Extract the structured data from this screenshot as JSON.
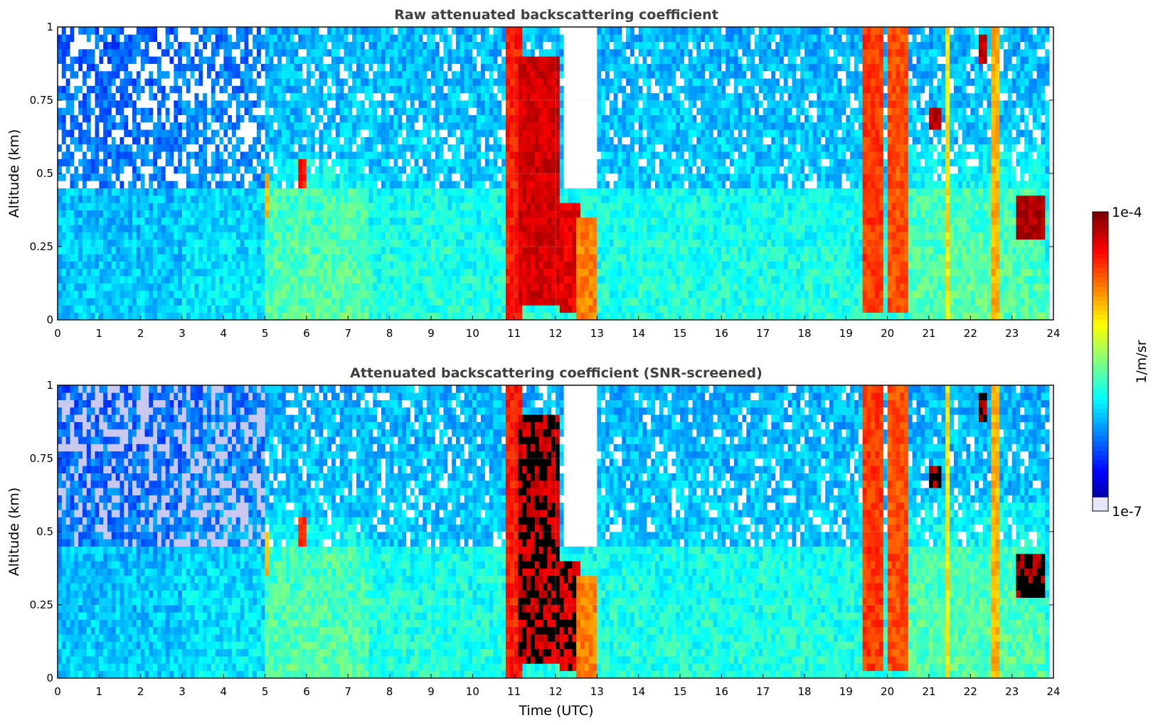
{
  "figure": {
    "colorbar": {
      "label": "1/m/sr",
      "max_label": "1e-4",
      "min_label": "1e-7",
      "scale": "log",
      "min": 1e-07,
      "max": 0.0001,
      "colormap": "jet"
    },
    "grid": "dotted"
  },
  "chart_data": [
    {
      "type": "heatmap",
      "title": "Raw attenuated backscattering coefficient",
      "xlabel": "",
      "ylabel": "Altitude (km)",
      "xlim": [
        0,
        24
      ],
      "ylim": [
        0,
        1
      ],
      "x_ticks": [
        "0",
        "1",
        "2",
        "3",
        "4",
        "5",
        "6",
        "7",
        "8",
        "9",
        "10",
        "11",
        "12",
        "13",
        "14",
        "15",
        "16",
        "17",
        "18",
        "19",
        "20",
        "21",
        "22",
        "23",
        "24"
      ],
      "y_ticks": [
        "0",
        "0.25",
        "0.5",
        "0.75",
        "1"
      ],
      "features": {
        "cloud_bands": [
          {
            "start": 10.85,
            "end": 11.15,
            "bottom": 0,
            "top": 1.0,
            "level": 0.85
          },
          {
            "start": 11.1,
            "end": 12.1,
            "bottom": 0.05,
            "top": 0.9,
            "level": 0.92
          },
          {
            "start": 12.1,
            "end": 12.55,
            "bottom": 0.02,
            "top": 0.4,
            "level": 0.9
          },
          {
            "start": 12.55,
            "end": 13.0,
            "bottom": 0.0,
            "top": 0.35,
            "level": 0.75
          },
          {
            "start": 19.45,
            "end": 19.95,
            "bottom": 0.02,
            "top": 1.0,
            "level": 0.82
          },
          {
            "start": 20.0,
            "end": 20.45,
            "bottom": 0.02,
            "top": 1.0,
            "level": 0.8
          },
          {
            "start": 21.4,
            "end": 21.5,
            "bottom": 0,
            "top": 1.0,
            "level": 0.65
          },
          {
            "start": 22.5,
            "end": 22.7,
            "bottom": 0,
            "top": 1.0,
            "level": 0.7
          },
          {
            "start": 23.1,
            "end": 23.8,
            "bottom": 0.28,
            "top": 0.42,
            "level": 0.95
          },
          {
            "start": 21.05,
            "end": 21.25,
            "bottom": 0.65,
            "top": 0.72,
            "level": 0.95
          },
          {
            "start": 22.25,
            "end": 22.4,
            "bottom": 0.88,
            "top": 0.98,
            "level": 0.93
          },
          {
            "start": 5.0,
            "end": 5.1,
            "bottom": 0.35,
            "top": 0.5,
            "level": 0.7
          },
          {
            "start": 5.8,
            "end": 6.0,
            "bottom": 0.45,
            "top": 0.55,
            "level": 0.85
          }
        ],
        "clear_air_gap": {
          "start": 12.2,
          "end": 13.0,
          "bottom": 0.45,
          "top": 1.0
        }
      }
    },
    {
      "type": "heatmap",
      "title": "Attenuated backscattering coefficient (SNR-screened)",
      "xlabel": "Time (UTC)",
      "ylabel": "Altitude (km)",
      "xlim": [
        0,
        24
      ],
      "ylim": [
        0,
        1
      ],
      "x_ticks": [
        "0",
        "1",
        "2",
        "3",
        "4",
        "5",
        "6",
        "7",
        "8",
        "9",
        "10",
        "11",
        "12",
        "13",
        "14",
        "15",
        "16",
        "17",
        "18",
        "19",
        "20",
        "21",
        "22",
        "23",
        "24"
      ],
      "y_ticks": [
        "0",
        "0.25",
        "0.5",
        "0.75",
        "1"
      ],
      "features": {
        "screened": true,
        "saturated_color": "#000000"
      }
    }
  ]
}
